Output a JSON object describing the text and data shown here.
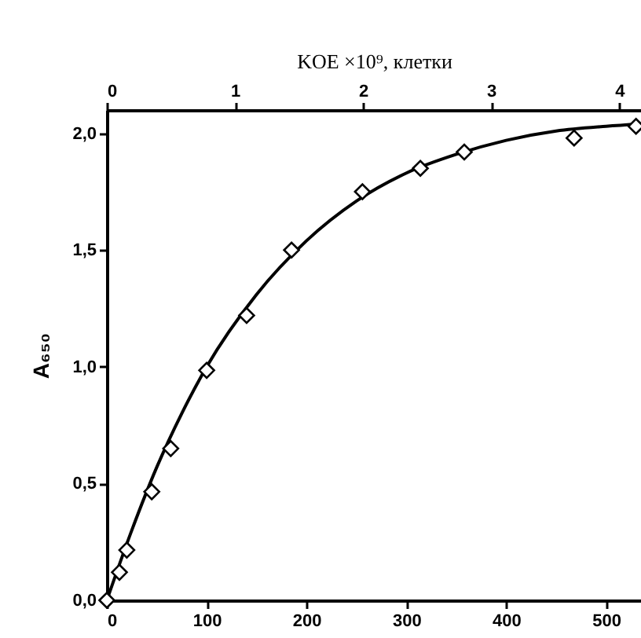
{
  "chart_data": {
    "type": "scatter",
    "x2label": "KOE ×10⁹, клетки",
    "ylabel": "A₆₅₀",
    "xlim": [
      0,
      535
    ],
    "xticks": [
      0,
      100,
      200,
      300,
      400,
      500
    ],
    "x2lim": [
      0,
      4.17
    ],
    "x2ticks": [
      0,
      1,
      2,
      3,
      4
    ],
    "ylim": [
      0,
      2.1
    ],
    "yticks": [
      {
        "value": 0,
        "label": "0,0"
      },
      {
        "value": 0.5,
        "label": "0,5"
      },
      {
        "value": 1,
        "label": "1,0"
      },
      {
        "value": 1.5,
        "label": "1,5"
      },
      {
        "value": 2,
        "label": "2,0"
      }
    ],
    "grid": false,
    "legend": false,
    "series": [
      {
        "marker": "diamond",
        "color": "#000000",
        "x": [
          0,
          12.6,
          20,
          45,
          64,
          100,
          140,
          185,
          256,
          314,
          358,
          468,
          530
        ],
        "values": [
          0,
          0.12,
          0.215,
          0.465,
          0.65,
          0.985,
          1.22,
          1.5,
          1.75,
          1.85,
          1.92,
          1.98,
          2.03
        ]
      },
      {
        "type": "line",
        "line_style": "solid",
        "color": "#000000",
        "x": [
          0,
          25,
          50,
          75,
          100,
          150,
          200,
          250,
          300,
          350,
          400,
          450,
          500,
          535
        ],
        "values": [
          0,
          0.3,
          0.57,
          0.8,
          1.0,
          1.31,
          1.54,
          1.71,
          1.83,
          1.91,
          1.97,
          2.01,
          2.03,
          2.04
        ]
      }
    ]
  }
}
